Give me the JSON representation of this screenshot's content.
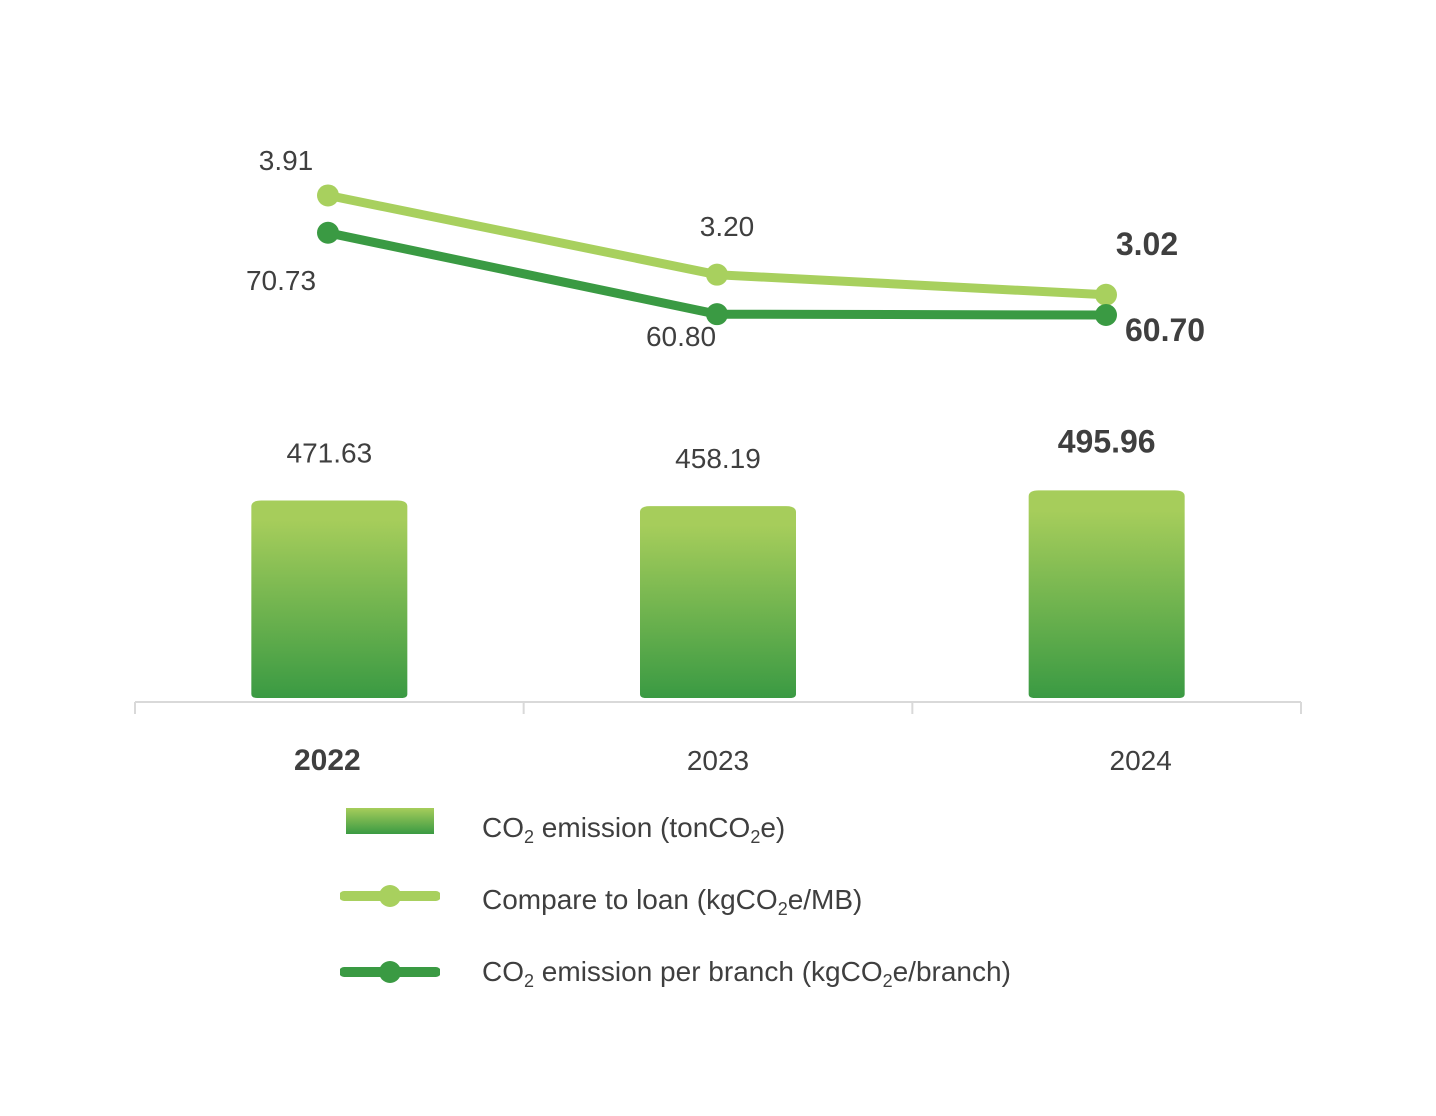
{
  "chart_data": {
    "type": "bar",
    "categories": [
      "2022",
      "2023",
      "2024"
    ],
    "series": [
      {
        "name": "CO2 emission (tonCO2e)",
        "kind": "bar",
        "values": [
          471.63,
          458.19,
          495.96
        ],
        "labels": [
          "471.63",
          "458.19",
          "495.96"
        ],
        "color": "#a6cd5b",
        "color_bottom": "#3a9a43"
      },
      {
        "name": "Compare to loan (kgCO2e/MB)",
        "kind": "line",
        "values": [
          3.91,
          3.2,
          3.02
        ],
        "labels": [
          "3.91",
          "3.20",
          "3.02"
        ],
        "color": "#a8d05e"
      },
      {
        "name": "CO2 emission per branch (kgCO2e/branch)",
        "kind": "line",
        "values": [
          70.73,
          60.8,
          60.7
        ],
        "labels": [
          "70.73",
          "60.80",
          "60.70"
        ],
        "color": "#3a9a43"
      }
    ],
    "bold_category": "2022",
    "bold_point": "2024",
    "legend_position": "bottom",
    "grid": false,
    "axis_color": "#d9d9d9",
    "text_color": "#3f3f3f"
  },
  "legend": {
    "items": [
      {
        "pre": "CO",
        "sub1": "2",
        "mid": " emission (tonCO",
        "sub2": "2",
        "post": "e)"
      },
      {
        "pre": "Compare to loan (kgCO",
        "sub1": "2",
        "mid": "e/MB)",
        "sub2": "",
        "post": ""
      },
      {
        "pre": "CO",
        "sub1": "2",
        "mid": " emission per branch (kgCO",
        "sub2": "2",
        "post": "e/branch)"
      }
    ]
  }
}
